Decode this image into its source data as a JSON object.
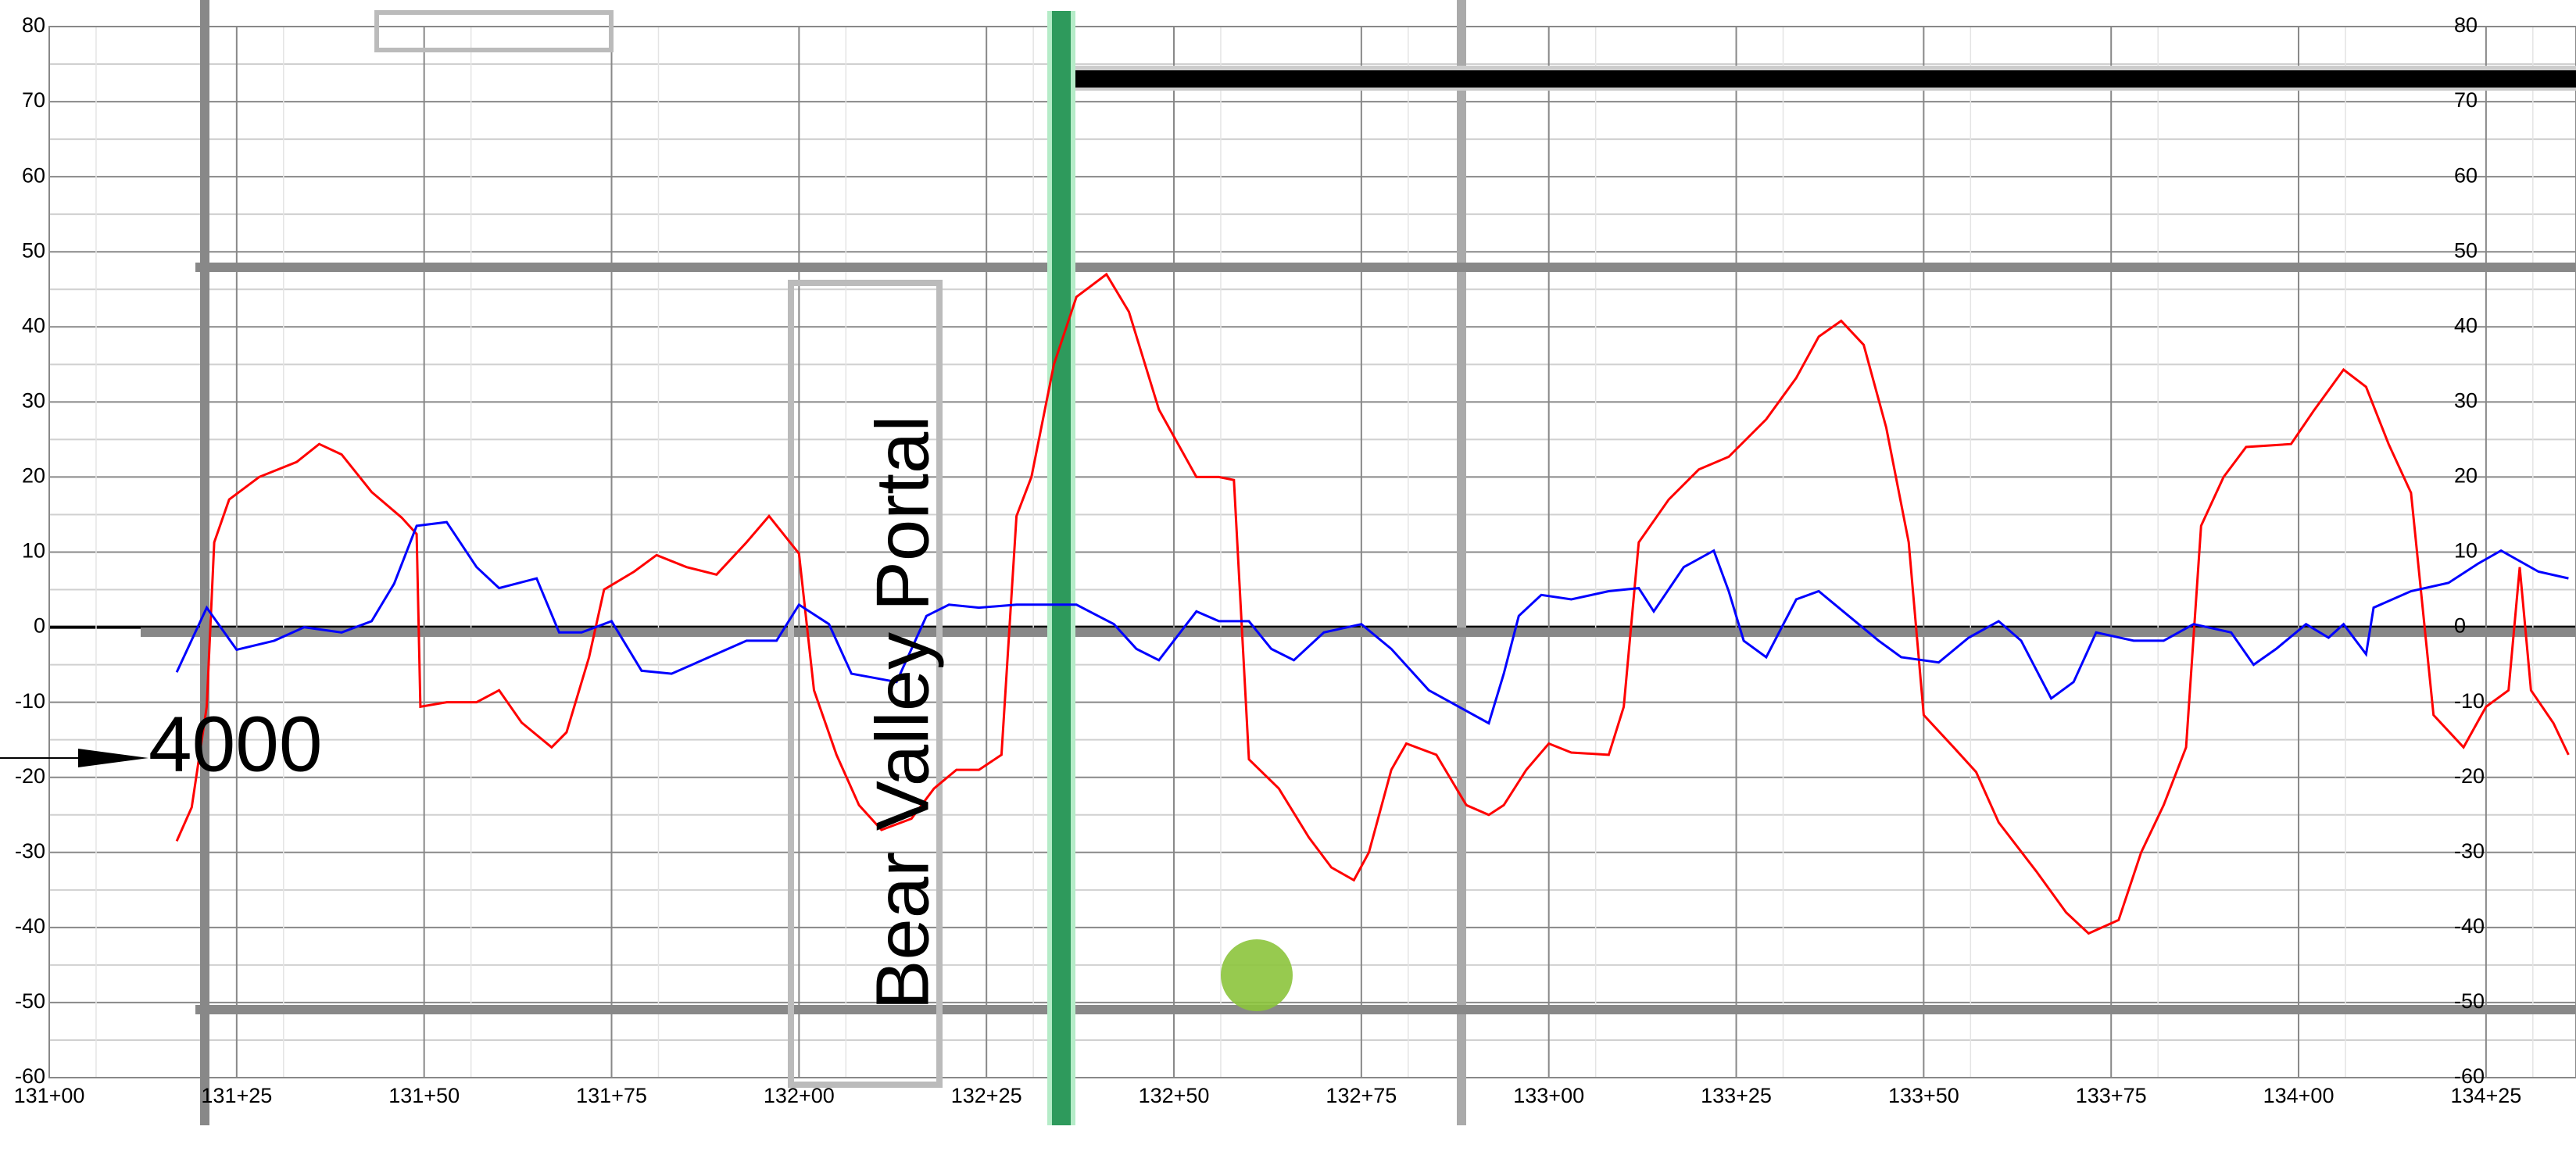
{
  "chart_data": {
    "type": "line",
    "annotations": [
      "4000",
      "Bear Valley Portal"
    ],
    "xlim": [
      13100,
      13437
    ],
    "ylim": [
      -60,
      80
    ],
    "xticks": [
      {
        "value": 13100,
        "label": "131+00"
      },
      {
        "value": 13125,
        "label": "131+25"
      },
      {
        "value": 13150,
        "label": "131+50"
      },
      {
        "value": 13175,
        "label": "131+75"
      },
      {
        "value": 13200,
        "label": "132+00"
      },
      {
        "value": 13225,
        "label": "132+25"
      },
      {
        "value": 13250,
        "label": "132+50"
      },
      {
        "value": 13275,
        "label": "132+75"
      },
      {
        "value": 13300,
        "label": "133+00"
      },
      {
        "value": 13325,
        "label": "133+25"
      },
      {
        "value": 13350,
        "label": "133+50"
      },
      {
        "value": 13375,
        "label": "133+75"
      },
      {
        "value": 13400,
        "label": "134+00"
      },
      {
        "value": 13425,
        "label": "134+25"
      }
    ],
    "yticks": [
      -60,
      -50,
      -40,
      -30,
      -20,
      -10,
      0,
      10,
      20,
      30,
      40,
      50,
      60,
      70,
      80
    ],
    "minor_yticks": [
      -55,
      -45,
      -35,
      -25,
      -15,
      -5,
      5,
      15,
      25,
      35,
      45,
      55,
      65,
      75
    ],
    "grid": true,
    "series": [
      {
        "color": "#ff0000",
        "x": [
          13117,
          13119,
          13121,
          13122,
          13124,
          13128,
          13133,
          13136,
          13139,
          13143,
          13147,
          13149,
          13149.5,
          13153,
          13157,
          13160,
          13163,
          13167,
          13169,
          13172,
          13174,
          13178,
          13181,
          13185,
          13189,
          13193,
          13196,
          13200,
          13202,
          13205,
          13208,
          13211,
          13215,
          13218,
          13221,
          13224,
          13227,
          13229,
          13231,
          13234,
          13237,
          13241,
          13244,
          13248,
          13253,
          13256,
          13258,
          13260,
          13264,
          13268,
          13271,
          13274,
          13276,
          13279,
          13281,
          13285,
          13289,
          13292,
          13294,
          13297,
          13300,
          13303,
          13308,
          13310,
          13312,
          13316,
          13320,
          13324,
          13329,
          13333,
          13336,
          13339,
          13342,
          13345,
          13348,
          13350,
          13354,
          13357,
          13360,
          13365,
          13369,
          13372,
          13376,
          13379,
          13382,
          13385,
          13387,
          13390,
          13393,
          13399,
          13402,
          13406,
          13409,
          13412,
          13415,
          13418,
          13422,
          13425,
          13428,
          13429.5,
          13431,
          13434,
          13436
        ],
        "values": [
          -28.5,
          -24,
          -10.6,
          11.3,
          17,
          20,
          22,
          24.4,
          23,
          18,
          14.6,
          12.4,
          -10.6,
          -10,
          -10,
          -8.4,
          -12.7,
          -16,
          -14,
          -4,
          5,
          7.4,
          9.6,
          8,
          7,
          11.3,
          14.8,
          9.8,
          -8.4,
          -17,
          -23.7,
          -27,
          -25.5,
          -21.5,
          -19,
          -19,
          -17,
          14.8,
          20,
          35,
          44,
          47,
          42,
          29,
          20,
          20,
          19.6,
          -17.6,
          -21.5,
          -28,
          -32,
          -33.7,
          -30,
          -19,
          -15.5,
          -17,
          -23.7,
          -25,
          -23.7,
          -19,
          -15.5,
          -16.7,
          -17,
          -10.6,
          11.3,
          17,
          21,
          22.7,
          27.7,
          33.2,
          38.7,
          40.8,
          37.6,
          26.6,
          11.3,
          -11.7,
          -16,
          -19.3,
          -26,
          -32.5,
          -38,
          -40.8,
          -39,
          -30,
          -23.7,
          -16,
          13.5,
          20,
          24,
          24.4,
          28.8,
          34.3,
          32,
          24.4,
          17.9,
          -11.7,
          -16,
          -10.6,
          -8.4,
          8,
          -8.4,
          -12.8,
          -17
        ]
      },
      {
        "color": "#0000ff",
        "x": [
          13117,
          13121,
          13125,
          13130,
          13134,
          13139,
          13143,
          13146,
          13149,
          13153,
          13157,
          13160,
          13165,
          13168,
          13171,
          13175,
          13179,
          13183,
          13188,
          13193,
          13197,
          13200,
          13204,
          13207,
          13213,
          13217,
          13220,
          13224,
          13229,
          13233,
          13237,
          13242,
          13245,
          13248,
          13253,
          13256,
          13260,
          13263,
          13266,
          13270,
          13275,
          13279,
          13284,
          13288,
          13292,
          13294,
          13296,
          13299,
          13303,
          13308,
          13312,
          13314,
          13318,
          13322,
          13324,
          13326,
          13329,
          13333,
          13336,
          13340,
          13344,
          13347,
          13352,
          13356,
          13360,
          13363,
          13367,
          13370,
          13373,
          13378,
          13382,
          13386,
          13391,
          13394,
          13397,
          13401,
          13404,
          13406,
          13409,
          13410,
          13415,
          13420,
          13424,
          13427,
          13432,
          13436
        ],
        "values": [
          -6,
          2.6,
          -3,
          -1.8,
          0,
          -0.7,
          0.8,
          5.8,
          13.5,
          14,
          8,
          5.2,
          6.5,
          -0.7,
          -0.7,
          0.8,
          -5.8,
          -6.2,
          -4,
          -1.8,
          -1.8,
          3,
          0.4,
          -6.2,
          -7.3,
          1.5,
          3,
          2.6,
          3,
          3,
          3,
          0.4,
          -2.9,
          -4.4,
          2.1,
          0.8,
          0.8,
          -2.9,
          -4.4,
          -0.7,
          0.4,
          -2.9,
          -8.4,
          -10.6,
          -12.8,
          -6.2,
          1.5,
          4.3,
          3.7,
          4.8,
          5.2,
          2.1,
          8,
          10.2,
          4.8,
          -1.8,
          -4,
          3.7,
          4.8,
          1.5,
          -1.8,
          -4,
          -4.7,
          -1.4,
          0.8,
          -1.8,
          -9.5,
          -7.3,
          -0.7,
          -1.8,
          -1.8,
          0.4,
          -0.7,
          -5,
          -2.9,
          0.4,
          -1.4,
          0.4,
          -3.6,
          2.6,
          4.8,
          5.9,
          8.5,
          10.2,
          7.4,
          6.5
        ]
      }
    ]
  }
}
